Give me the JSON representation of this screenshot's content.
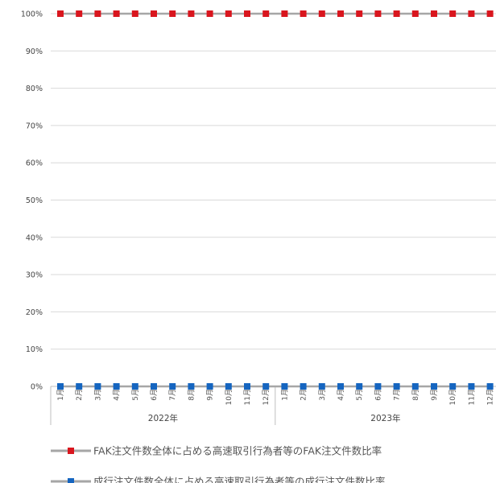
{
  "chart_data": {
    "type": "line",
    "title": "",
    "xlabel": "",
    "ylabel": "",
    "ylim": [
      0,
      1
    ],
    "yticks": [
      "0%",
      "10%",
      "20%",
      "30%",
      "40%",
      "50%",
      "60%",
      "70%",
      "80%",
      "90%",
      "100%"
    ],
    "grid": true,
    "legend_position": "bottom",
    "categories": [
      "1月",
      "2月",
      "3月",
      "4月",
      "5月",
      "6月",
      "7月",
      "8月",
      "9月",
      "10月",
      "11月",
      "12月",
      "1月",
      "2月",
      "3月",
      "4月",
      "5月",
      "6月",
      "7月",
      "8月",
      "9月",
      "10月",
      "11月",
      "12月"
    ],
    "groups": [
      {
        "label": "2022年",
        "count": 12
      },
      {
        "label": "2023年",
        "count": 12
      }
    ],
    "series": [
      {
        "name": "FAK注文件数全体に占める高速取引行為者等のFAK注文件数比率",
        "color": "#d9161e",
        "line_color": "#a6a6a6",
        "values": [
          1,
          1,
          1,
          1,
          1,
          1,
          1,
          1,
          1,
          1,
          1,
          1,
          1,
          1,
          1,
          1,
          1,
          1,
          1,
          1,
          1,
          1,
          1,
          1
        ]
      },
      {
        "name": "成行注文件数全体に占める高速取引行為者等の成行注文件数比率",
        "color": "#1565c0",
        "line_color": "#a6a6a6",
        "values": [
          0,
          0,
          0,
          0,
          0,
          0,
          0,
          0,
          0,
          0,
          0,
          0,
          0,
          0,
          0,
          0,
          0,
          0,
          0,
          0,
          0,
          0,
          0,
          0
        ]
      }
    ]
  }
}
